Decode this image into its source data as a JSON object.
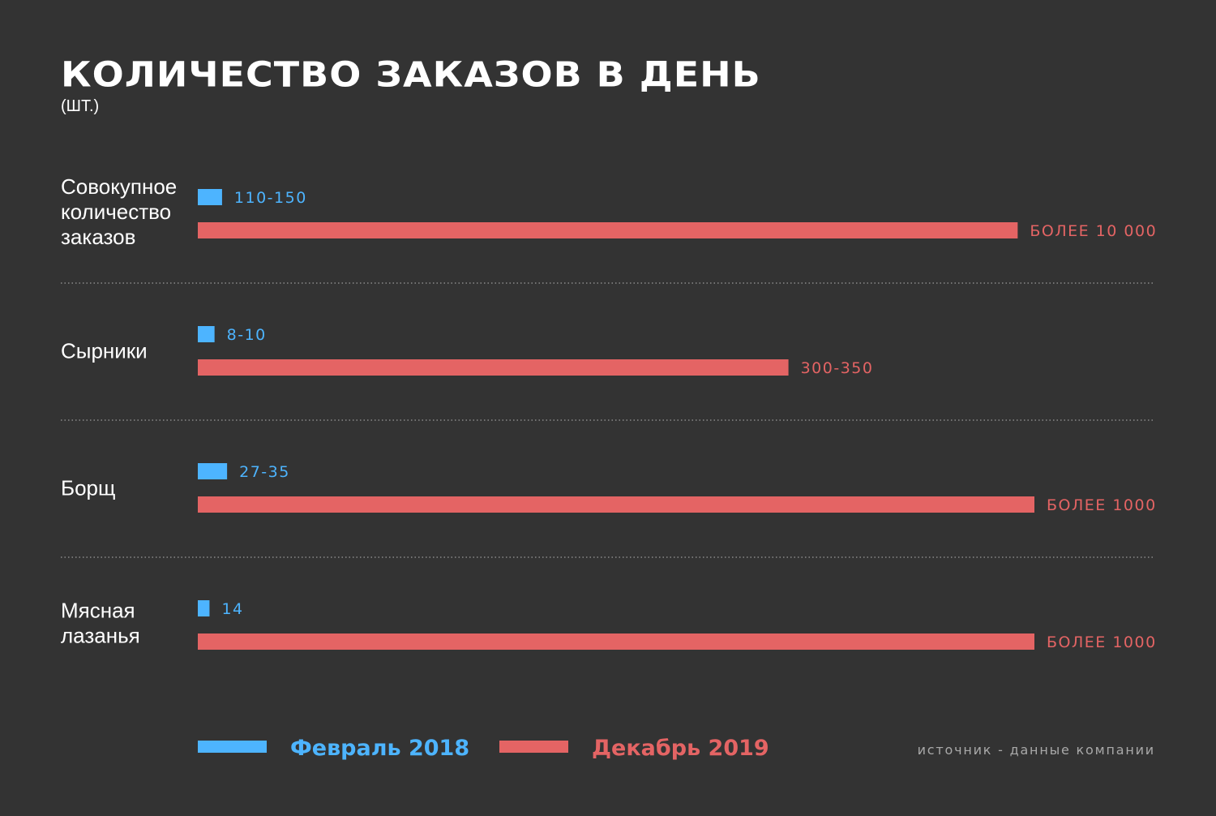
{
  "chart_data": {
    "type": "bar",
    "orientation": "horizontal",
    "title": "КОЛИЧЕСТВО ЗАКАЗОВ В ДЕНЬ",
    "subtitle": "(ШТ.)",
    "categories": [
      [
        "Совокупное",
        "количество",
        "заказов"
      ],
      [
        "Сырники"
      ],
      [
        "Борщ"
      ],
      [
        "Мясная",
        "лазанья"
      ]
    ],
    "series": [
      {
        "name": "Февраль 2018",
        "color": "#4db4ff",
        "labels": [
          "110-150",
          "8-10",
          "27-35",
          "14"
        ],
        "relative_values": [
          0.029,
          0.02,
          0.035,
          0.014
        ]
      },
      {
        "name": "Декабрь 2019",
        "color": "#e46464",
        "labels": [
          "БОЛЕЕ 10 000",
          "300-350",
          "БОЛЕЕ 1000",
          "БОЛЕЕ 1000"
        ],
        "relative_values": [
          0.98,
          0.706,
          1.0,
          1.0
        ]
      }
    ],
    "grid": false,
    "legend_position": "bottom"
  },
  "source": "источник - данные компании"
}
